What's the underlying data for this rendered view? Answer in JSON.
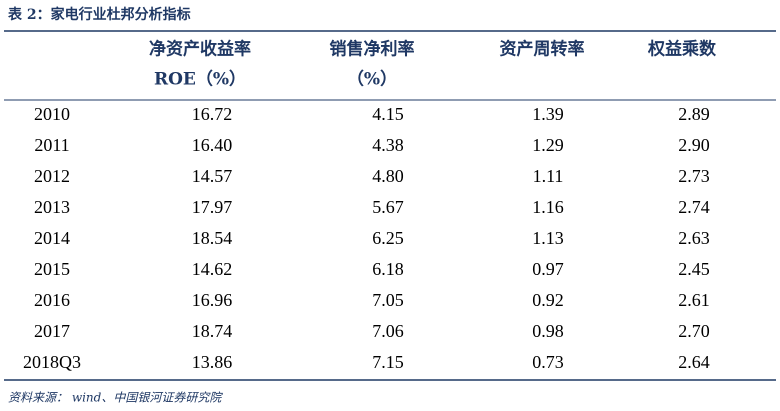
{
  "title": "表 2：家电行业杜邦分析指标",
  "table": {
    "header": [
      [
        "净资产收益率",
        "ROE（%）"
      ],
      [
        "销售净利率",
        "（%）"
      ],
      [
        "资产周转率"
      ],
      [
        "权益乘数"
      ]
    ],
    "rows": [
      [
        "2010",
        "16.72",
        "4.15",
        "1.39",
        "2.89"
      ],
      [
        "2011",
        "16.40",
        "4.38",
        "1.29",
        "2.90"
      ],
      [
        "2012",
        "14.57",
        "4.80",
        "1.11",
        "2.73"
      ],
      [
        "2013",
        "17.97",
        "5.67",
        "1.16",
        "2.74"
      ],
      [
        "2014",
        "18.54",
        "6.25",
        "1.13",
        "2.63"
      ],
      [
        "2015",
        "14.62",
        "6.18",
        "0.97",
        "2.45"
      ],
      [
        "2016",
        "16.96",
        "7.05",
        "0.92",
        "2.61"
      ],
      [
        "2017",
        "18.74",
        "7.06",
        "0.98",
        "2.70"
      ],
      [
        "2018Q3",
        "13.86",
        "7.15",
        "0.73",
        "2.64"
      ]
    ]
  },
  "source": "资料来源： wind、中国银河证券研究院"
}
